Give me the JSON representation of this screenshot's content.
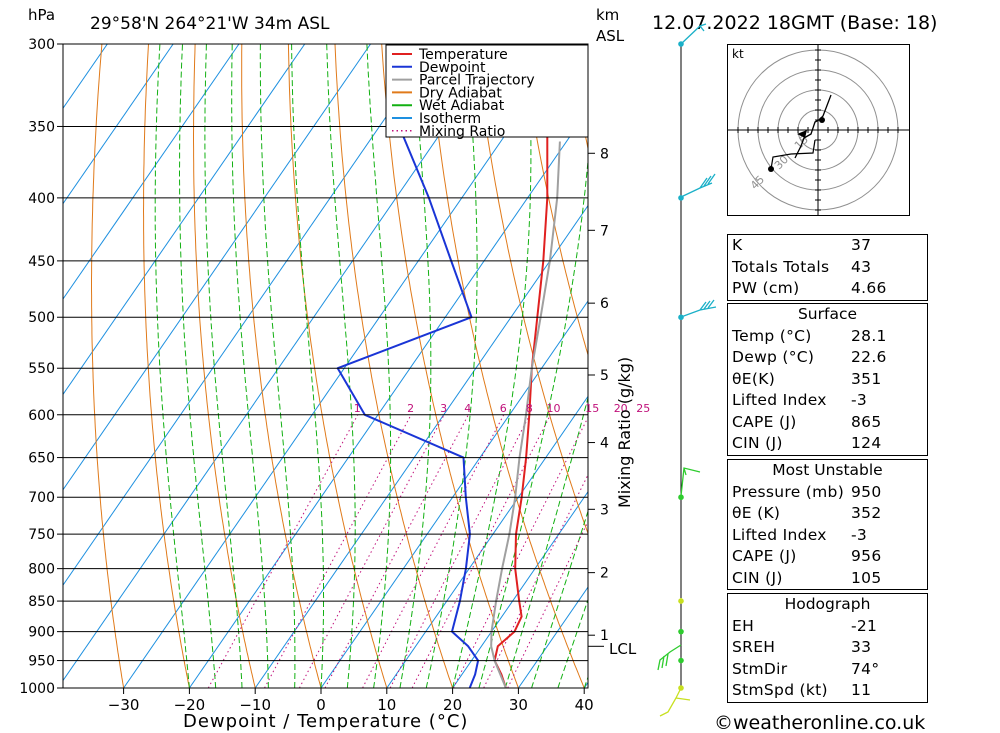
{
  "header": {
    "pressure_unit": "hPa",
    "location": "29°58'N  264°21'W  34m  ASL",
    "km_label_1": "km",
    "km_label_2": "ASL",
    "datetime": "12.07.2022  18GMT  (Base: 18)"
  },
  "chart_data": {
    "type": "line",
    "pressure_levels": [
      300,
      350,
      400,
      450,
      500,
      550,
      600,
      650,
      700,
      750,
      800,
      850,
      900,
      950,
      1000
    ],
    "temperature_ticks": [
      -30,
      -20,
      -10,
      0,
      10,
      20,
      30,
      40
    ],
    "xlabel": "Dewpoint / Temperature (°C)",
    "mixing_ratio_axis_label": "Mixing Ratio (g/kg)",
    "mixing_ratio_labels": [
      "1",
      "2",
      "3",
      "4",
      "6",
      "8",
      "10",
      "15",
      "20",
      "25"
    ],
    "altitude_km_ticks": [
      {
        "label": "8",
        "p": 368
      },
      {
        "label": "7",
        "p": 425
      },
      {
        "label": "6",
        "p": 487
      },
      {
        "label": "5",
        "p": 557
      },
      {
        "label": "4",
        "p": 632
      },
      {
        "label": "3",
        "p": 716
      },
      {
        "label": "2",
        "p": 806
      },
      {
        "label": "1",
        "p": 906
      }
    ],
    "lcl_label": "LCL",
    "lcl_pressure": 925,
    "legend": [
      {
        "name": "Temperature",
        "color": "#e02020",
        "style": "solid"
      },
      {
        "name": "Dewpoint",
        "color": "#1a35d6",
        "style": "solid"
      },
      {
        "name": "Parcel Trajectory",
        "color": "#a0a0a0",
        "style": "solid"
      },
      {
        "name": "Dry Adiabat",
        "color": "#e07a1a",
        "style": "solid"
      },
      {
        "name": "Wet Adiabat",
        "color": "#12b012",
        "style": "solid"
      },
      {
        "name": "Isotherm",
        "color": "#1e90e0",
        "style": "solid"
      },
      {
        "name": "Mixing Ratio",
        "color": "#c0107a",
        "style": "dotted"
      }
    ],
    "series": [
      {
        "name": "Temperature",
        "points": [
          {
            "p": 1000,
            "t": 28.1
          },
          {
            "p": 975,
            "t": 26
          },
          {
            "p": 950,
            "t": 23.5
          },
          {
            "p": 925,
            "t": 22.5
          },
          {
            "p": 900,
            "t": 23.5
          },
          {
            "p": 875,
            "t": 23
          },
          {
            "p": 850,
            "t": 21
          },
          {
            "p": 800,
            "t": 17
          },
          {
            "p": 750,
            "t": 13.5
          },
          {
            "p": 700,
            "t": 10.5
          },
          {
            "p": 650,
            "t": 7
          },
          {
            "p": 600,
            "t": 3
          },
          {
            "p": 550,
            "t": -1.5
          },
          {
            "p": 500,
            "t": -6
          },
          {
            "p": 450,
            "t": -11
          },
          {
            "p": 400,
            "t": -17
          },
          {
            "p": 350,
            "t": -24.5
          },
          {
            "p": 300,
            "t": -33
          }
        ]
      },
      {
        "name": "Dewpoint",
        "points": [
          {
            "p": 1000,
            "t": 22.6
          },
          {
            "p": 975,
            "t": 22
          },
          {
            "p": 950,
            "t": 21
          },
          {
            "p": 925,
            "t": 18
          },
          {
            "p": 900,
            "t": 14
          },
          {
            "p": 850,
            "t": 12
          },
          {
            "p": 800,
            "t": 9.5
          },
          {
            "p": 750,
            "t": 6.5
          },
          {
            "p": 700,
            "t": 2
          },
          {
            "p": 650,
            "t": -2.5
          },
          {
            "p": 600,
            "t": -22
          },
          {
            "p": 550,
            "t": -31
          },
          {
            "p": 500,
            "t": -16
          },
          {
            "p": 450,
            "t": -25
          },
          {
            "p": 400,
            "t": -35
          },
          {
            "p": 350,
            "t": -47
          },
          {
            "p": 300,
            "t": -57
          }
        ]
      },
      {
        "name": "Parcel Trajectory",
        "points": [
          {
            "p": 1000,
            "t": 28.1
          },
          {
            "p": 950,
            "t": 23.5
          },
          {
            "p": 925,
            "t": 21.5
          },
          {
            "p": 900,
            "t": 20
          },
          {
            "p": 850,
            "t": 17.5
          },
          {
            "p": 800,
            "t": 15
          },
          {
            "p": 750,
            "t": 12.5
          },
          {
            "p": 700,
            "t": 9.5
          },
          {
            "p": 650,
            "t": 6
          },
          {
            "p": 600,
            "t": 2.5
          },
          {
            "p": 550,
            "t": -1.5
          },
          {
            "p": 500,
            "t": -5.5
          },
          {
            "p": 450,
            "t": -10
          },
          {
            "p": 400,
            "t": -15.5
          },
          {
            "p": 360,
            "t": -21
          }
        ]
      }
    ]
  },
  "hodograph": {
    "unit_label": "kt",
    "ring_labels": [
      "15",
      "30",
      "45"
    ],
    "color": "#000000"
  },
  "wind_profile": {
    "color_upper": "#1ab0c8",
    "color_mid": "#2ecc2e",
    "color_low": "#c8e020"
  },
  "indices": {
    "top": [
      {
        "label": "K",
        "value": "37"
      },
      {
        "label": "Totals Totals",
        "value": "43"
      },
      {
        "label": "PW (cm)",
        "value": "4.66"
      }
    ],
    "surface": {
      "title": "Surface",
      "rows": [
        {
          "label": "Temp (°C)",
          "value": "28.1"
        },
        {
          "label": "Dewp (°C)",
          "value": "22.6"
        },
        {
          "label": "θE(K)",
          "value": "351"
        },
        {
          "label": "Lifted Index",
          "value": "-3"
        },
        {
          "label": "CAPE (J)",
          "value": "865"
        },
        {
          "label": "CIN (J)",
          "value": "124"
        }
      ]
    },
    "most_unstable": {
      "title": "Most Unstable",
      "rows": [
        {
          "label": "Pressure (mb)",
          "value": "950"
        },
        {
          "label": "θE (K)",
          "value": "352"
        },
        {
          "label": "Lifted Index",
          "value": "-3"
        },
        {
          "label": "CAPE (J)",
          "value": "956"
        },
        {
          "label": "CIN (J)",
          "value": "105"
        }
      ]
    },
    "hodograph_box": {
      "title": "Hodograph",
      "rows": [
        {
          "label": "EH",
          "value": "-21"
        },
        {
          "label": "SREH",
          "value": "33"
        },
        {
          "label": "StmDir",
          "value": "74°"
        },
        {
          "label": "StmSpd (kt)",
          "value": "11"
        }
      ]
    }
  },
  "footer": {
    "copyright": "©weatheronline.co.uk"
  }
}
